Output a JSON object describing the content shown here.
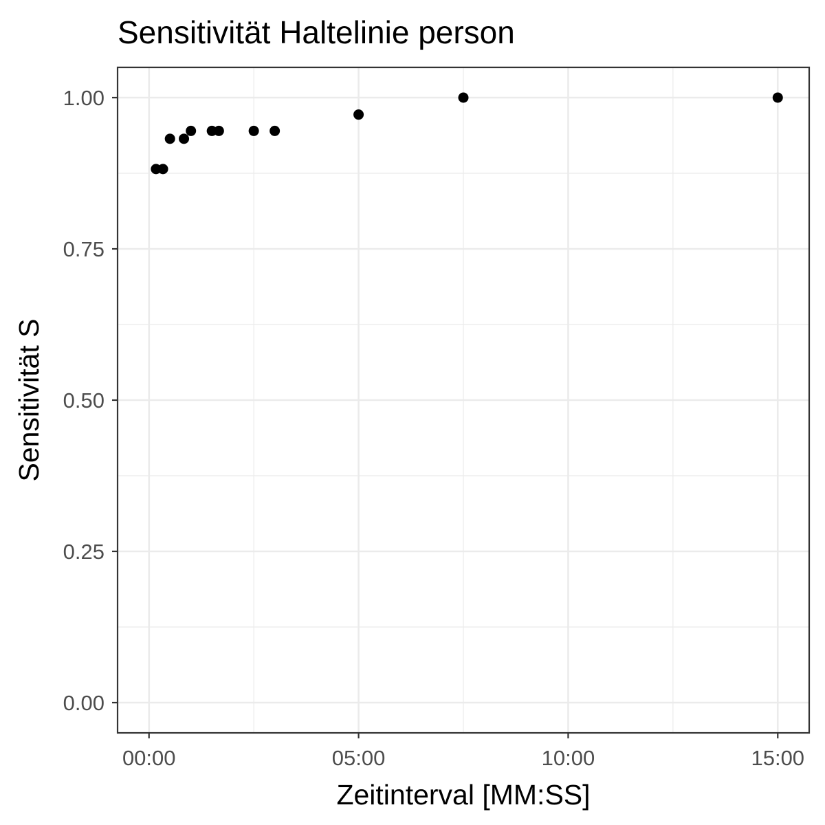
{
  "chart_data": {
    "type": "scatter",
    "title": "Sensitivität Haltelinie person",
    "xlabel": "Zeitinterval [MM:SS]",
    "ylabel": "Sensitivität S",
    "x_unit": "MM:SS",
    "xlim": [
      "-00:45",
      "15:45"
    ],
    "ylim": [
      -0.05,
      1.05
    ],
    "x_ticks": [
      "00:00",
      "05:00",
      "10:00",
      "15:00"
    ],
    "y_ticks": [
      "0.00",
      "0.25",
      "0.50",
      "0.75",
      "1.00"
    ],
    "x_minor_ticks": [
      "02:30",
      "07:30",
      "12:30"
    ],
    "y_minor_ticks": [
      "0.125",
      "0.375",
      "0.625",
      "0.875"
    ],
    "grid": true,
    "legend": "none",
    "point_color": "#000000",
    "grid_color": "#ebebeb",
    "panel_border_color": "#333333",
    "tick_label_color": "#4d4d4d",
    "points": [
      {
        "x": "00:10",
        "y": 0.882
      },
      {
        "x": "00:20",
        "y": 0.882
      },
      {
        "x": "00:30",
        "y": 0.932
      },
      {
        "x": "00:50",
        "y": 0.932
      },
      {
        "x": "01:00",
        "y": 0.945
      },
      {
        "x": "01:30",
        "y": 0.945
      },
      {
        "x": "01:40",
        "y": 0.945
      },
      {
        "x": "02:30",
        "y": 0.945
      },
      {
        "x": "03:00",
        "y": 0.945
      },
      {
        "x": "05:00",
        "y": 0.972
      },
      {
        "x": "07:30",
        "y": 1.0
      },
      {
        "x": "15:00",
        "y": 1.0
      }
    ]
  }
}
